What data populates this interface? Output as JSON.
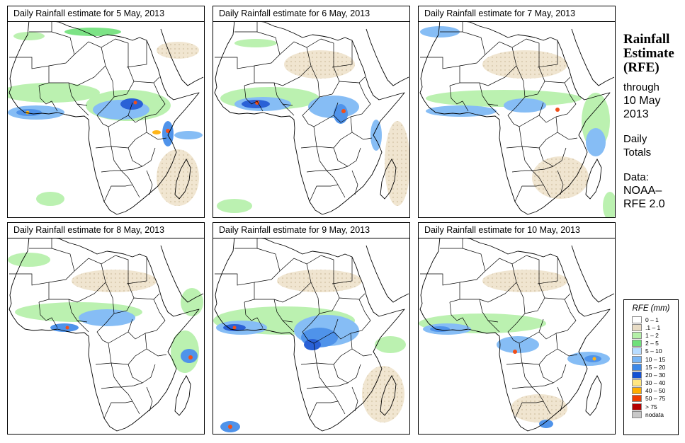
{
  "panels": [
    {
      "title": "Daily Rainfall estimate for  5 May, 2013"
    },
    {
      "title": "Daily Rainfall estimate for  6 May, 2013"
    },
    {
      "title": "Daily Rainfall estimate for  7 May, 2013"
    },
    {
      "title": "Daily Rainfall estimate for  8 May, 2013"
    },
    {
      "title": "Daily Rainfall estimate for  9 May, 2013"
    },
    {
      "title": "Daily Rainfall estimate for  10 May, 2013"
    }
  ],
  "side": {
    "title_line1": "Rainfall",
    "title_line2": "Estimate",
    "title_line3": "(RFE)",
    "through": "through",
    "date_line1": "10 May",
    "date_line2": "2013",
    "totals_line1": "Daily",
    "totals_line2": "Totals",
    "data_line1": "Data:",
    "data_line2": "NOAA–",
    "data_line3": "RFE 2.0"
  },
  "legend": {
    "title": "RFE (mm)",
    "items": [
      {
        "label": "0 – 1",
        "color": "#ffffff"
      },
      {
        "label": ".1 – 1",
        "color": "#e8dcc5"
      },
      {
        "label": "1 – 2",
        "color": "#b4f0a8"
      },
      {
        "label": "2 – 5",
        "color": "#6fe07a"
      },
      {
        "label": "5 – 10",
        "color": "#b8dcff"
      },
      {
        "label": "10 – 15",
        "color": "#7ab6f5"
      },
      {
        "label": "15 – 20",
        "color": "#3c88e8"
      },
      {
        "label": "20 – 30",
        "color": "#1450d2"
      },
      {
        "label": "30 – 40",
        "color": "#ffe680"
      },
      {
        "label": "40 – 50",
        "color": "#ffae00"
      },
      {
        "label": "50 – 75",
        "color": "#f03c00"
      },
      {
        "label": "> 75",
        "color": "#b40000"
      },
      {
        "label": "nodata",
        "color": "#c8c8c8"
      }
    ]
  }
}
